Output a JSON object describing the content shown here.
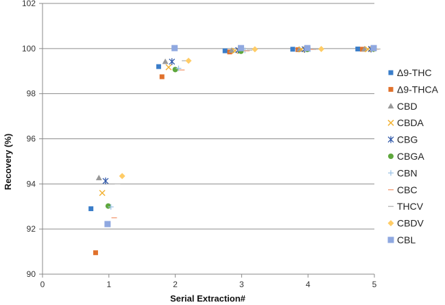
{
  "chart_data": {
    "type": "scatter",
    "xlabel": "Serial Extraction#",
    "ylabel": "Recovery (%)",
    "xlim": [
      0,
      5
    ],
    "ylim": [
      90,
      102
    ],
    "x_ticks": [
      "0",
      "1",
      "2",
      "3",
      "4",
      "5"
    ],
    "y_ticks": [
      "90",
      "92",
      "94",
      "96",
      "98",
      "100",
      "102"
    ],
    "grid": "horizontal",
    "legend_position": "right",
    "series": [
      {
        "name": "Δ9-THC",
        "color": "#3a7dc9",
        "marker": "square",
        "points": [
          [
            0.73,
            92.9
          ],
          [
            1.75,
            99.2
          ],
          [
            2.75,
            99.9
          ],
          [
            3.77,
            99.97
          ],
          [
            4.75,
            99.98
          ]
        ]
      },
      {
        "name": "Δ9-THCA",
        "color": "#e0712c",
        "marker": "square",
        "points": [
          [
            0.8,
            90.95
          ],
          [
            1.8,
            98.75
          ],
          [
            2.82,
            99.85
          ],
          [
            3.85,
            99.95
          ],
          [
            4.82,
            99.97
          ]
        ]
      },
      {
        "name": "CBD",
        "color": "#999999",
        "marker": "triangle",
        "points": [
          [
            0.85,
            94.27
          ],
          [
            1.85,
            99.42
          ],
          [
            2.85,
            99.92
          ],
          [
            3.87,
            99.97
          ],
          [
            4.85,
            99.98
          ]
        ]
      },
      {
        "name": "CBDA",
        "color": "#f2b233",
        "marker": "x",
        "points": [
          [
            0.9,
            93.6
          ],
          [
            1.9,
            99.17
          ],
          [
            2.9,
            99.9
          ],
          [
            3.9,
            99.96
          ],
          [
            4.9,
            99.97
          ]
        ]
      },
      {
        "name": "CBG",
        "color": "#2f57a8",
        "marker": "star",
        "points": [
          [
            0.95,
            94.13
          ],
          [
            1.95,
            99.42
          ],
          [
            2.95,
            99.93
          ],
          [
            3.95,
            99.97
          ],
          [
            4.95,
            99.98
          ]
        ]
      },
      {
        "name": "CBGA",
        "color": "#5ea73d",
        "marker": "circle",
        "points": [
          [
            0.99,
            93.02
          ],
          [
            2.0,
            99.07
          ],
          [
            2.99,
            99.88
          ],
          [
            3.99,
            99.96
          ],
          [
            4.99,
            99.97
          ]
        ]
      },
      {
        "name": "CBN",
        "color": "#9dc3e6",
        "marker": "plus",
        "points": [
          [
            1.03,
            92.98
          ],
          [
            2.05,
            99.12
          ],
          [
            3.05,
            99.92
          ],
          [
            4.03,
            99.97
          ],
          [
            5.0,
            99.98
          ]
        ]
      },
      {
        "name": "CBC",
        "color": "#f4a582",
        "marker": "dash",
        "points": [
          [
            1.08,
            92.5
          ],
          [
            2.1,
            99.05
          ],
          [
            3.08,
            99.9
          ],
          [
            4.08,
            99.96
          ],
          [
            5.03,
            99.97
          ]
        ]
      },
      {
        "name": "THCV",
        "color": "#bbbbbb",
        "marker": "dash",
        "points": [
          [
            1.13,
            94.0
          ],
          [
            2.14,
            99.46
          ],
          [
            3.12,
            99.93
          ],
          [
            4.12,
            99.97
          ],
          [
            5.05,
            99.98
          ]
        ]
      },
      {
        "name": "CBDV",
        "color": "#ffcc66",
        "marker": "diamond",
        "points": [
          [
            1.2,
            94.35
          ],
          [
            2.2,
            99.46
          ],
          [
            3.2,
            99.97
          ],
          [
            4.2,
            99.98
          ],
          [
            5.0,
            99.99
          ]
        ]
      },
      {
        "name": "CBL",
        "color": "#8fa8e0",
        "marker": "bigsquare",
        "points": [
          [
            0.98,
            92.22
          ],
          [
            1.99,
            100.02
          ],
          [
            2.99,
            100.02
          ],
          [
            3.99,
            100.02
          ],
          [
            4.99,
            100.02
          ]
        ]
      }
    ]
  }
}
